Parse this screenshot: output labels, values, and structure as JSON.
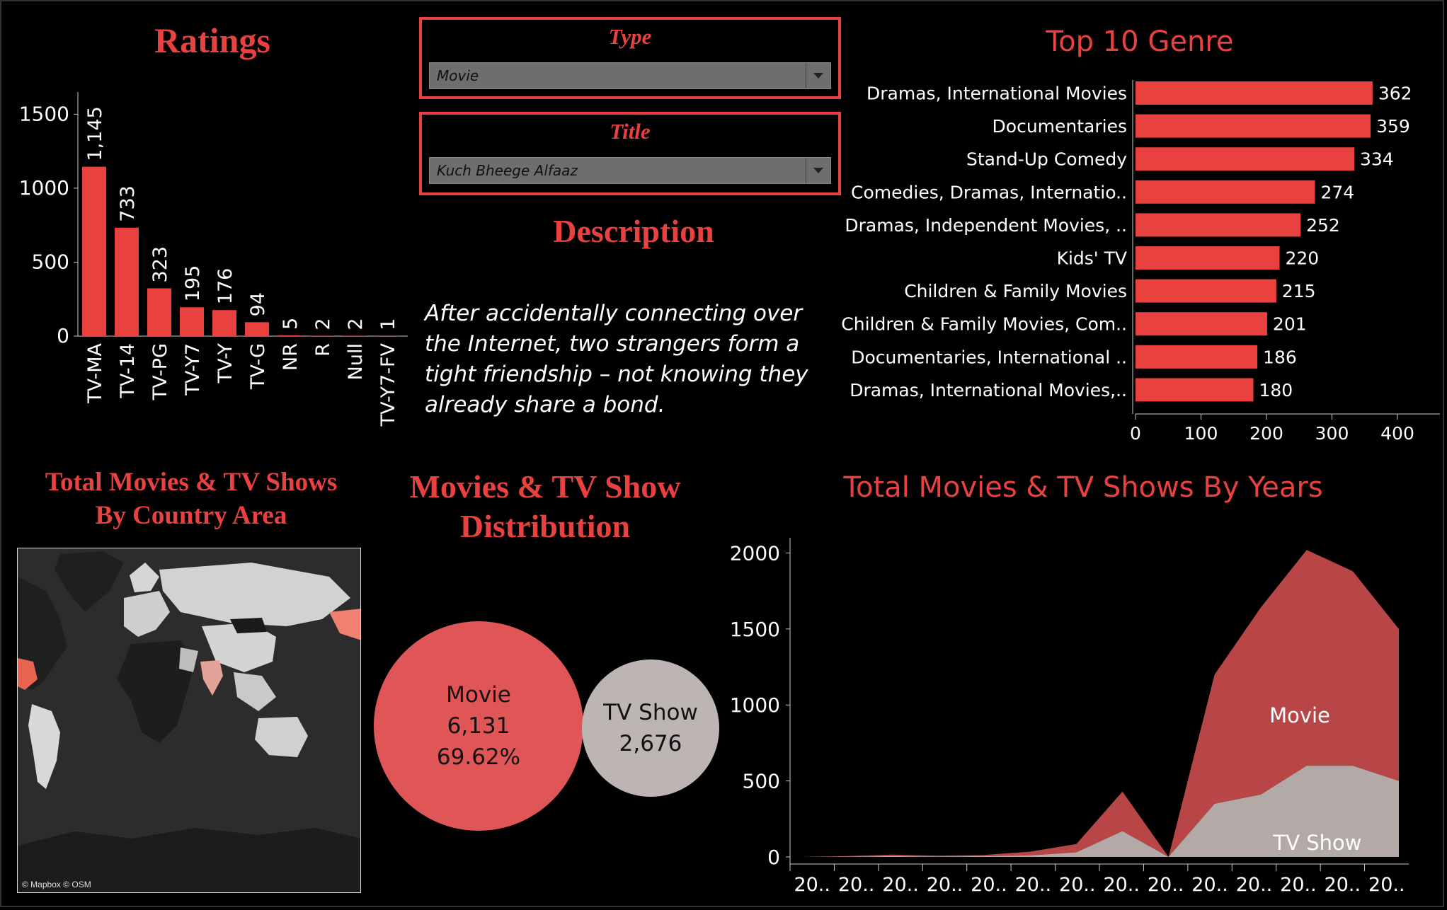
{
  "ratings": {
    "title": "Ratings",
    "chart_data": {
      "type": "bar",
      "categories": [
        "TV-MA",
        "TV-14",
        "TV-PG",
        "TV-Y7",
        "TV-Y",
        "TV-G",
        "NR",
        "R",
        "Null",
        "TV-Y7-FV"
      ],
      "values": [
        1145,
        733,
        323,
        195,
        176,
        94,
        5,
        2,
        2,
        1
      ],
      "value_labels": [
        "1,145",
        "733",
        "323",
        "195",
        "176",
        "94",
        "5",
        "2",
        "2",
        "1"
      ],
      "yticks": [
        "0",
        "500",
        "1000",
        "1500"
      ],
      "ylim": [
        0,
        1650
      ],
      "color": "#e8413f"
    }
  },
  "filters": {
    "type_label": "Type",
    "type_value": "Movie",
    "title_label": "Title",
    "title_value": "Kuch Bheege Alfaaz"
  },
  "description": {
    "title": "Description",
    "text": "After accidentally connecting over the Internet, two strangers form a tight friendship – not knowing they already share a bond."
  },
  "genre": {
    "title": "Top 10 Genre",
    "chart_data": {
      "type": "bar",
      "orientation": "horizontal",
      "categories": [
        "Dramas, International Movies",
        "Documentaries",
        "Stand-Up Comedy",
        "Comedies, Dramas, Internatio..",
        "Dramas, Independent Movies, ..",
        "Kids' TV",
        "Children & Family Movies",
        "Children & Family Movies, Com..",
        "Documentaries, International ..",
        "Dramas, International Movies,.."
      ],
      "values": [
        362,
        359,
        334,
        274,
        252,
        220,
        215,
        201,
        186,
        180
      ],
      "xticks": [
        "0",
        "100",
        "200",
        "300",
        "400"
      ],
      "xlim": [
        0,
        400
      ],
      "color": "#e8413f"
    }
  },
  "map": {
    "title_line1": "Total Movies & TV Shows",
    "title_line2": "By Country Area",
    "credit": "© Mapbox © OSM"
  },
  "distribution": {
    "title_line1": "Movies & TV Show",
    "title_line2": "Distribution",
    "movie": {
      "label": "Movie",
      "count": "6,131",
      "pct": "69.62%",
      "color": "#e05656"
    },
    "tvshow": {
      "label": "TV Show",
      "count": "2,676",
      "color": "#bcb5b3"
    }
  },
  "years": {
    "title": "Total Movies & TV Shows By Years",
    "chart_data": {
      "type": "area",
      "x": [
        "20..",
        "20..",
        "20..",
        "20..",
        "20..",
        "20..",
        "20..",
        "20..",
        "20..",
        "20..",
        "20..",
        "20..",
        "20..",
        "20.."
      ],
      "series": [
        {
          "name": "TV Show",
          "values": [
            0,
            2,
            5,
            3,
            5,
            10,
            30,
            170,
            0,
            350,
            410,
            600,
            600,
            500
          ],
          "color": "#b3aaa8"
        },
        {
          "name": "Movie",
          "values": [
            0,
            3,
            10,
            5,
            8,
            25,
            55,
            260,
            0,
            850,
            1230,
            1420,
            1280,
            1000
          ],
          "color": "#b84646"
        }
      ],
      "yticks": [
        "0",
        "500",
        "1000",
        "1500",
        "2000"
      ],
      "ylim": [
        0,
        2100
      ]
    }
  }
}
